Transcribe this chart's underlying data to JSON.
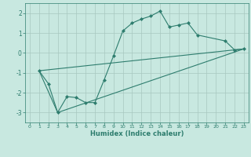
{
  "xlabel": "Humidex (Indice chaleur)",
  "bg_color": "#c8e8e0",
  "line_color": "#2e7d6e",
  "grid_color": "#a8c8c0",
  "xlim": [
    -0.5,
    23.5
  ],
  "ylim": [
    -3.5,
    2.5
  ],
  "yticks": [
    -3,
    -2,
    -1,
    0,
    1,
    2
  ],
  "xticks": [
    0,
    1,
    2,
    3,
    4,
    5,
    6,
    7,
    8,
    9,
    10,
    11,
    12,
    13,
    14,
    15,
    16,
    17,
    18,
    19,
    20,
    21,
    22,
    23
  ],
  "line1_x": [
    1,
    2,
    3,
    4,
    5,
    6,
    7,
    8,
    9,
    10,
    11,
    12,
    13,
    14,
    15,
    16,
    17,
    18,
    21,
    22,
    23
  ],
  "line1_y": [
    -0.9,
    -1.55,
    -3.0,
    -2.2,
    -2.25,
    -2.5,
    -2.5,
    -1.35,
    -0.15,
    1.1,
    1.5,
    1.7,
    1.85,
    2.1,
    1.3,
    1.4,
    1.5,
    0.9,
    0.6,
    0.15,
    0.2
  ],
  "line2_x": [
    1,
    3,
    23
  ],
  "line2_y": [
    -0.9,
    -3.0,
    0.2
  ],
  "line3_x": [
    1,
    23
  ],
  "line3_y": [
    -0.9,
    0.2
  ]
}
